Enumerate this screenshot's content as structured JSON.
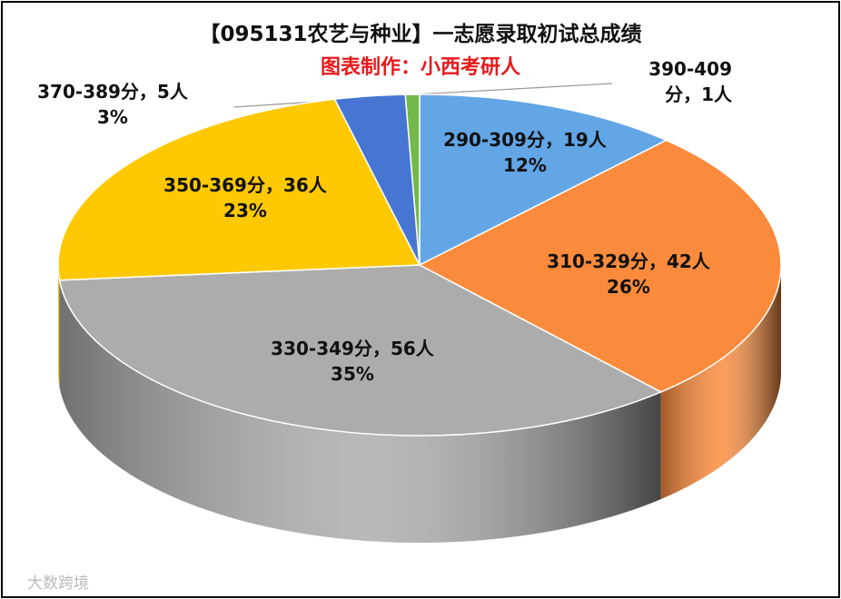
{
  "chart_data": {
    "type": "pie",
    "title": "【095131农艺与种业】一志愿录取初试总成绩",
    "subtitle": "图表制作：小西考研人",
    "labels": [
      "290-309分，19人",
      "310-329分，42人",
      "330-349分，56人",
      "350-369分，36人",
      "370-389分，5人",
      "390-409分，1人"
    ],
    "values": [
      19,
      42,
      56,
      36,
      5,
      1
    ],
    "percent_labels": [
      "12%",
      "26%",
      "35%",
      "23%",
      "3%",
      null
    ],
    "colors": [
      "#62a6e6",
      "#fa8b3c",
      "#acacac",
      "#fec902",
      "#4676d2",
      "#72b84a"
    ],
    "watermark": "大数跨境"
  }
}
